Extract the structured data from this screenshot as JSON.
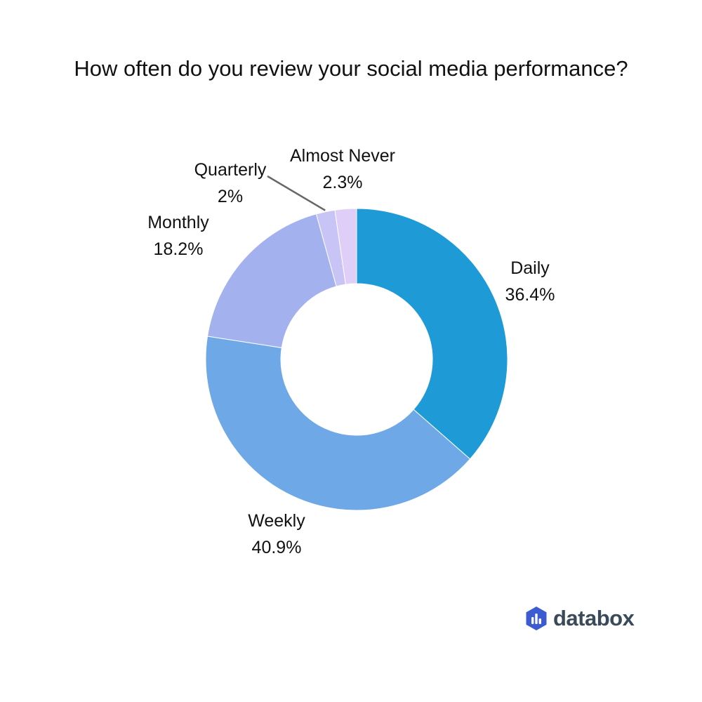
{
  "chart_data": {
    "type": "pie",
    "variant": "donut",
    "title": "How often do you review your social media performance?",
    "categories": [
      "Daily",
      "Weekly",
      "Monthly",
      "Quarterly",
      "Almost Never"
    ],
    "values": [
      36.4,
      40.9,
      18.2,
      2,
      2.3
    ],
    "value_labels": [
      "36.4%",
      "40.9%",
      "18.2%",
      "2%",
      "2.3%"
    ],
    "colors": [
      "#1e9bd7",
      "#6fa8e6",
      "#a3b2ef",
      "#c8c4f5",
      "#dfcff8"
    ],
    "start": "12 o'clock",
    "direction": "clockwise"
  },
  "brand": {
    "name": "databox",
    "icon": "databox-logo-icon",
    "color": "#3b4a5a",
    "icon_color": "#3d5bd1"
  }
}
